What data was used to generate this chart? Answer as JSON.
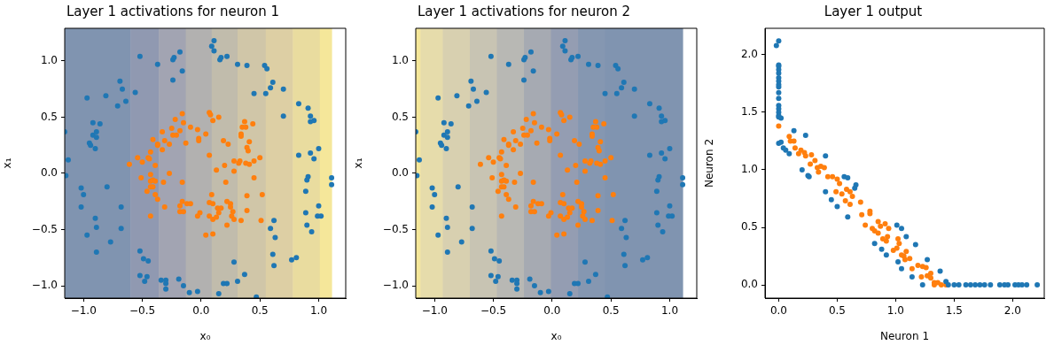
{
  "chart_data": [
    {
      "type": "scatter",
      "title": "Layer 1 activations for neuron 1",
      "xlabel": "x₀",
      "ylabel": "x₁",
      "marker": "circle",
      "bands": [
        {
          "axis": "x",
          "from": -1.16,
          "to": -0.6,
          "color": "#8094b0"
        },
        {
          "axis": "x",
          "from": -0.6,
          "to": -0.36,
          "color": "#9099b1"
        },
        {
          "axis": "x",
          "from": -0.36,
          "to": -0.13,
          "color": "#a2a4b2"
        },
        {
          "axis": "x",
          "from": -0.13,
          "to": 0.09,
          "color": "#b2b1b0"
        },
        {
          "axis": "x",
          "from": 0.09,
          "to": 0.31,
          "color": "#c1bcac"
        },
        {
          "axis": "x",
          "from": 0.31,
          "to": 0.55,
          "color": "#d0c6a8"
        },
        {
          "axis": "x",
          "from": 0.55,
          "to": 0.78,
          "color": "#ddcfa4"
        },
        {
          "axis": "x",
          "from": 0.78,
          "to": 1.01,
          "color": "#e9dc9f"
        },
        {
          "axis": "x",
          "from": 1.01,
          "to": 1.11,
          "color": "#f5e79a"
        }
      ],
      "xlim": [
        -1.16,
        1.23
      ],
      "ylim": [
        -1.11,
        1.29
      ],
      "xticks": [
        {
          "value": -1,
          "label": "−1.0"
        },
        {
          "value": -0.5,
          "label": "−0.5"
        },
        {
          "value": 0,
          "label": "0.0"
        },
        {
          "value": 0.5,
          "label": "0.5"
        },
        {
          "value": 1,
          "label": "1.0"
        }
      ],
      "yticks": [
        {
          "value": -1,
          "label": "−1.0"
        },
        {
          "value": -0.5,
          "label": "−0.5"
        },
        {
          "value": 0,
          "label": "0.0"
        },
        {
          "value": 0.5,
          "label": "0.5"
        },
        {
          "value": 1,
          "label": "1.0"
        }
      ],
      "series": [
        {
          "color": "#1f77b4",
          "x": [
            -1.16,
            -1.13,
            -1.15,
            -0.97,
            -0.92,
            -0.86,
            -0.89,
            -0.92,
            -0.89,
            -0.95,
            -0.94,
            -0.9,
            -0.81,
            -0.71,
            -0.69,
            -0.67,
            -0.64,
            -0.56,
            -0.52,
            -0.37,
            -0.24,
            -0.23,
            -0.18,
            -0.16,
            -0.24,
            0.11,
            0.09,
            0.11,
            0.16,
            0.17,
            0.22,
            0.31,
            0.39,
            0.45,
            0.54,
            0.56,
            0.55,
            0.59,
            0.61,
            0.7,
            0.7,
            0.83,
            0.91,
            0.93,
            0.93,
            0.96,
            0.83,
            0.93,
            1.0,
            0.96,
            0.91,
            0.9,
            0.89,
            1.11,
            1.11,
            1.0,
            0.99,
            1.02,
            0.89,
            0.9,
            0.94,
            0.62,
            0.59,
            0.63,
            0.61,
            0.62,
            0.77,
            0.81,
            0.28,
            0.37,
            0.31,
            0.19,
            0.22,
            -0.15,
            -0.19,
            -0.3,
            -0.34,
            -0.3,
            -0.46,
            -0.52,
            -0.48,
            -0.52,
            -0.49,
            -0.45,
            -0.68,
            -0.68,
            -0.8,
            -0.77,
            -0.9,
            -0.89,
            -0.89,
            -0.97,
            -1.02,
            -1.0,
            -1.02,
            -0.3,
            -0.1,
            -0.03,
            0.15,
            0.47
          ],
          "values": [
            0.37,
            0.12,
            -0.02,
            0.67,
            0.45,
            0.44,
            0.37,
            0.34,
            0.32,
            0.27,
            0.25,
            0.22,
            0.69,
            0.6,
            0.82,
            0.75,
            0.64,
            0.72,
            1.04,
            0.97,
            1.01,
            1.03,
            1.08,
            0.91,
            0.83,
            1.18,
            1.13,
            1.09,
            1.01,
            1.03,
            1.04,
            0.97,
            0.96,
            0.71,
            0.96,
            0.93,
            0.71,
            0.76,
            0.81,
            0.75,
            0.51,
            0.62,
            0.58,
            0.51,
            0.46,
            0.47,
            0.16,
            0.18,
            0.22,
            0.13,
            -0.03,
            -0.06,
            -0.16,
            -0.04,
            -0.1,
            -0.29,
            -0.38,
            -0.38,
            -0.35,
            -0.46,
            -0.52,
            -0.42,
            -0.49,
            -0.57,
            -0.72,
            -0.82,
            -0.77,
            -0.75,
            -0.79,
            -0.9,
            -0.96,
            -0.98,
            -0.98,
            -1.0,
            -0.94,
            -0.95,
            -0.95,
            -0.98,
            -0.92,
            -0.91,
            -0.96,
            -0.69,
            -0.76,
            -0.78,
            -0.3,
            -0.49,
            -0.12,
            -0.61,
            -0.4,
            -0.48,
            -0.7,
            -0.55,
            -0.13,
            -0.19,
            -0.3,
            -1.03,
            -1.06,
            -1.05,
            -1.07,
            -1.1
          ]
        },
        {
          "color": "#ff7f0e",
          "x": [
            -0.61,
            -0.54,
            -0.5,
            -0.51,
            -0.46,
            -0.43,
            -0.43,
            -0.45,
            -0.44,
            -0.39,
            -0.43,
            -0.43,
            -0.41,
            -0.39,
            -0.41,
            -0.39,
            -0.37,
            -0.43,
            -0.31,
            -0.32,
            -0.27,
            -0.33,
            -0.31,
            -0.37,
            -0.37,
            -0.33,
            -0.41,
            -0.27,
            -0.25,
            -0.24,
            -0.21,
            -0.22,
            -0.18,
            -0.15,
            -0.16,
            -0.13,
            -0.09,
            -0.16,
            -0.18,
            -0.16,
            -0.18,
            -0.15,
            -0.12,
            -0.09,
            -0.03,
            -0.01,
            0.04,
            0.1,
            0.07,
            0.09,
            0.1,
            0.07,
            0.1,
            0.13,
            0.14,
            0.15,
            0.17,
            0.13,
            0.07,
            -0.03,
            -0.02,
            -0.02,
            0.04,
            0.07,
            0.08,
            0.1,
            0.15,
            0.19,
            0.23,
            0.2,
            0.21,
            0.22,
            0.25,
            0.25,
            0.27,
            0.26,
            0.28,
            0.34,
            0.22,
            0.28,
            0.28,
            0.32,
            0.33,
            0.38,
            0.41,
            0.45,
            0.5,
            0.45,
            0.39,
            0.52,
            0.39,
            0.51,
            0.37,
            0.35,
            0.38,
            0.44,
            0.34,
            0.34,
            0.41,
            0.39,
            0.4
          ],
          "values": [
            0.08,
            0.14,
            0.1,
            -0.04,
            -0.16,
            -0.01,
            0.19,
            0.14,
            0.13,
            0.07,
            -0.07,
            -0.12,
            -0.06,
            -0.07,
            -0.12,
            -0.19,
            -0.23,
            -0.38,
            -0.3,
            -0.08,
            0.0,
            0.21,
            0.29,
            0.25,
            0.26,
            0.37,
            0.3,
            0.26,
            0.4,
            0.34,
            0.34,
            0.48,
            0.38,
            0.45,
            0.53,
            0.27,
            0.41,
            -0.08,
            -0.29,
            -0.25,
            -0.34,
            -0.34,
            -0.27,
            -0.27,
            -0.38,
            -0.35,
            -0.55,
            -0.54,
            -0.26,
            -0.19,
            -0.27,
            -0.38,
            -0.41,
            -0.39,
            -0.31,
            -0.35,
            -0.31,
            0.03,
            0.16,
            0.39,
            0.31,
            0.29,
            0.35,
            0.54,
            0.52,
            0.47,
            0.5,
            0.29,
            0.26,
            0.07,
            -0.08,
            -0.25,
            -0.27,
            -0.3,
            -0.34,
            -0.38,
            -0.41,
            -0.42,
            -0.46,
            0.11,
            0.02,
            0.09,
            0.11,
            0.09,
            0.08,
            0.11,
            0.14,
            -0.04,
            -0.2,
            -0.19,
            -0.33,
            -0.42,
            0.46,
            0.41,
            0.41,
            0.44,
            0.35,
            0.33,
            0.28,
            0.23,
            0.2
          ]
        }
      ]
    },
    {
      "type": "scatter",
      "title": "Layer 1 activations for neuron 2",
      "xlabel": "x₀",
      "ylabel": "x₁",
      "marker": "circle",
      "bands": [
        {
          "axis": "x",
          "from": -1.16,
          "to": -1.12,
          "color": "#f5e79a"
        },
        {
          "axis": "x",
          "from": -1.12,
          "to": -0.93,
          "color": "#e6dcab"
        },
        {
          "axis": "x",
          "from": -0.93,
          "to": -0.7,
          "color": "#d8d0b0"
        },
        {
          "axis": "x",
          "from": -0.7,
          "to": -0.47,
          "color": "#c8c4b3"
        },
        {
          "axis": "x",
          "from": -0.47,
          "to": -0.24,
          "color": "#b8b8b4"
        },
        {
          "axis": "x",
          "from": -0.24,
          "to": -0.01,
          "color": "#a6aab2"
        },
        {
          "axis": "x",
          "from": -0.01,
          "to": 0.22,
          "color": "#949db2"
        },
        {
          "axis": "x",
          "from": 0.22,
          "to": 0.45,
          "color": "#8597b1"
        },
        {
          "axis": "x",
          "from": 0.45,
          "to": 1.11,
          "color": "#8094b0"
        }
      ],
      "xlim": [
        -1.16,
        1.23
      ],
      "ylim": [
        -1.11,
        1.29
      ],
      "xticks": [
        {
          "value": -1,
          "label": "−1.0"
        },
        {
          "value": -0.5,
          "label": "−0.5"
        },
        {
          "value": 0,
          "label": "0.0"
        },
        {
          "value": 0.5,
          "label": "0.5"
        },
        {
          "value": 1,
          "label": "1.0"
        }
      ],
      "yticks": [
        {
          "value": -1,
          "label": "−1.0"
        },
        {
          "value": -0.5,
          "label": "−0.5"
        },
        {
          "value": 0,
          "label": "0.0"
        },
        {
          "value": 0.5,
          "label": "0.5"
        },
        {
          "value": 1,
          "label": "1.0"
        }
      ],
      "series": [
        {
          "color": "#1f77b4",
          "x": [
            -1.16,
            -1.13,
            -1.15,
            -0.97,
            -0.92,
            -0.86,
            -0.89,
            -0.92,
            -0.89,
            -0.95,
            -0.94,
            -0.9,
            -0.81,
            -0.71,
            -0.69,
            -0.67,
            -0.64,
            -0.56,
            -0.52,
            -0.37,
            -0.24,
            -0.23,
            -0.18,
            -0.16,
            -0.24,
            0.11,
            0.09,
            0.11,
            0.16,
            0.17,
            0.22,
            0.31,
            0.39,
            0.45,
            0.54,
            0.56,
            0.55,
            0.59,
            0.61,
            0.7,
            0.7,
            0.83,
            0.91,
            0.93,
            0.93,
            0.96,
            0.83,
            0.93,
            1.0,
            0.96,
            0.91,
            0.9,
            0.89,
            1.11,
            1.11,
            1.0,
            0.99,
            1.02,
            0.89,
            0.9,
            0.94,
            0.62,
            0.59,
            0.63,
            0.61,
            0.62,
            0.77,
            0.81,
            0.28,
            0.37,
            0.31,
            0.19,
            0.22,
            -0.15,
            -0.19,
            -0.3,
            -0.34,
            -0.3,
            -0.46,
            -0.52,
            -0.48,
            -0.52,
            -0.49,
            -0.45,
            -0.68,
            -0.68,
            -0.8,
            -0.77,
            -0.9,
            -0.89,
            -0.89,
            -0.97,
            -1.02,
            -1.0,
            -1.02,
            -0.3,
            -0.1,
            -0.03,
            0.15,
            0.47
          ],
          "values": [
            0.37,
            0.12,
            -0.02,
            0.67,
            0.45,
            0.44,
            0.37,
            0.34,
            0.32,
            0.27,
            0.25,
            0.22,
            0.69,
            0.6,
            0.82,
            0.75,
            0.64,
            0.72,
            1.04,
            0.97,
            1.01,
            1.03,
            1.08,
            0.91,
            0.83,
            1.18,
            1.13,
            1.09,
            1.01,
            1.03,
            1.04,
            0.97,
            0.96,
            0.71,
            0.96,
            0.93,
            0.71,
            0.76,
            0.81,
            0.75,
            0.51,
            0.62,
            0.58,
            0.51,
            0.46,
            0.47,
            0.16,
            0.18,
            0.22,
            0.13,
            -0.03,
            -0.06,
            -0.16,
            -0.04,
            -0.1,
            -0.29,
            -0.38,
            -0.38,
            -0.35,
            -0.46,
            -0.52,
            -0.42,
            -0.49,
            -0.57,
            -0.72,
            -0.82,
            -0.77,
            -0.75,
            -0.79,
            -0.9,
            -0.96,
            -0.98,
            -0.98,
            -1.0,
            -0.94,
            -0.95,
            -0.95,
            -0.98,
            -0.92,
            -0.91,
            -0.96,
            -0.69,
            -0.76,
            -0.78,
            -0.3,
            -0.49,
            -0.12,
            -0.61,
            -0.4,
            -0.48,
            -0.7,
            -0.55,
            -0.13,
            -0.19,
            -0.3,
            -1.03,
            -1.06,
            -1.05,
            -1.07,
            -1.1
          ]
        },
        {
          "color": "#ff7f0e",
          "x": [
            -0.61,
            -0.54,
            -0.5,
            -0.51,
            -0.46,
            -0.43,
            -0.43,
            -0.45,
            -0.44,
            -0.39,
            -0.43,
            -0.43,
            -0.41,
            -0.39,
            -0.41,
            -0.39,
            -0.37,
            -0.43,
            -0.31,
            -0.32,
            -0.27,
            -0.33,
            -0.31,
            -0.37,
            -0.37,
            -0.33,
            -0.41,
            -0.27,
            -0.25,
            -0.24,
            -0.21,
            -0.22,
            -0.18,
            -0.15,
            -0.16,
            -0.13,
            -0.09,
            -0.16,
            -0.18,
            -0.16,
            -0.18,
            -0.15,
            -0.12,
            -0.09,
            -0.03,
            -0.01,
            0.04,
            0.1,
            0.07,
            0.09,
            0.1,
            0.07,
            0.1,
            0.13,
            0.14,
            0.15,
            0.17,
            0.13,
            0.07,
            -0.03,
            -0.02,
            -0.02,
            0.04,
            0.07,
            0.08,
            0.1,
            0.15,
            0.19,
            0.23,
            0.2,
            0.21,
            0.22,
            0.25,
            0.25,
            0.27,
            0.26,
            0.28,
            0.34,
            0.22,
            0.28,
            0.28,
            0.32,
            0.33,
            0.38,
            0.41,
            0.45,
            0.5,
            0.45,
            0.39,
            0.52,
            0.39,
            0.51,
            0.37,
            0.35,
            0.38,
            0.44,
            0.34,
            0.34,
            0.41,
            0.39,
            0.4
          ],
          "values": [
            0.08,
            0.14,
            0.1,
            -0.04,
            -0.16,
            -0.01,
            0.19,
            0.14,
            0.13,
            0.07,
            -0.07,
            -0.12,
            -0.06,
            -0.07,
            -0.12,
            -0.19,
            -0.23,
            -0.38,
            -0.3,
            -0.08,
            0.0,
            0.21,
            0.29,
            0.25,
            0.26,
            0.37,
            0.3,
            0.26,
            0.4,
            0.34,
            0.34,
            0.48,
            0.38,
            0.45,
            0.53,
            0.27,
            0.41,
            -0.08,
            -0.29,
            -0.25,
            -0.34,
            -0.34,
            -0.27,
            -0.27,
            -0.38,
            -0.35,
            -0.55,
            -0.54,
            -0.26,
            -0.19,
            -0.27,
            -0.38,
            -0.41,
            -0.39,
            -0.31,
            -0.35,
            -0.31,
            0.03,
            0.16,
            0.39,
            0.31,
            0.29,
            0.35,
            0.54,
            0.52,
            0.47,
            0.5,
            0.29,
            0.26,
            0.07,
            -0.08,
            -0.25,
            -0.27,
            -0.3,
            -0.34,
            -0.38,
            -0.41,
            -0.42,
            -0.46,
            0.11,
            0.02,
            0.09,
            0.11,
            0.09,
            0.08,
            0.11,
            0.14,
            -0.04,
            -0.2,
            -0.19,
            -0.33,
            -0.42,
            0.46,
            0.41,
            0.41,
            0.44,
            0.35,
            0.33,
            0.28,
            0.23,
            0.2
          ]
        }
      ]
    },
    {
      "type": "scatter",
      "title": "Layer 1 output",
      "xlabel": "Neuron 1",
      "ylabel": "Neuron 2",
      "marker": "circle",
      "xlim": [
        -0.117,
        2.27
      ],
      "ylim": [
        -0.115,
        2.23
      ],
      "xticks": [
        {
          "value": 0,
          "label": "0.0"
        },
        {
          "value": 0.5,
          "label": "0.5"
        },
        {
          "value": 1,
          "label": "1.0"
        },
        {
          "value": 1.5,
          "label": "1.5"
        },
        {
          "value": 2,
          "label": "2.0"
        }
      ],
      "yticks": [
        {
          "value": 0,
          "label": "0.0"
        },
        {
          "value": 0.5,
          "label": "0.5"
        },
        {
          "value": 1,
          "label": "1.0"
        },
        {
          "value": 1.5,
          "label": "1.5"
        },
        {
          "value": 2,
          "label": "2.0"
        }
      ],
      "series": [
        {
          "color": "#1f77b4",
          "x": [
            0,
            -0.02,
            0,
            0,
            0,
            0,
            0,
            0,
            0,
            0,
            0,
            0,
            0,
            0,
            0,
            0,
            0,
            0.02,
            0,
            0.02,
            0.04,
            0.06,
            0.09,
            0.13,
            0.23,
            0.2,
            0.25,
            0.26,
            0.4,
            0.4,
            0.45,
            0.5,
            0.56,
            0.59,
            0.66,
            0.65,
            0.59,
            0.82,
            0.88,
            0.92,
            1.01,
            1.05,
            1.09,
            1.17,
            1.02,
            1.05,
            1.14,
            1.27,
            1.38,
            1.23,
            1.43,
            1.45,
            1.5,
            1.54,
            1.6,
            1.64,
            1.68,
            1.72,
            1.76,
            1.81,
            1.89,
            1.93,
            1.96,
            2.02,
            2.05,
            2.08,
            2.12,
            2.21
          ],
          "values": [
            2.12,
            2.08,
            1.91,
            1.9,
            1.87,
            1.84,
            1.8,
            1.77,
            1.74,
            1.72,
            1.67,
            1.62,
            1.56,
            1.53,
            1.5,
            1.47,
            1.46,
            1.45,
            1.23,
            1.24,
            1.19,
            1.17,
            1.14,
            1.34,
            1.3,
            1.0,
            0.95,
            0.94,
            1.12,
            0.81,
            0.74,
            0.68,
            0.94,
            0.93,
            0.87,
            0.84,
            0.59,
            0.36,
            0.31,
            0.26,
            0.52,
            0.49,
            0.42,
            0.35,
            0.2,
            0.14,
            0.07,
            0.22,
            0.12,
            0,
            0.03,
            0,
            0,
            0,
            0,
            0,
            0,
            0,
            0,
            0,
            0,
            0,
            0,
            0,
            0,
            0,
            0,
            0
          ]
        },
        {
          "color": "#ff7f0e",
          "x": [
            0,
            0.09,
            0.1,
            0.13,
            0.14,
            0.17,
            0.19,
            0.22,
            0.23,
            0.28,
            0.27,
            0.31,
            0.33,
            0.36,
            0.39,
            0.34,
            0.42,
            0.46,
            0.5,
            0.52,
            0.49,
            0.54,
            0.58,
            0.61,
            0.63,
            0.57,
            0.61,
            0.7,
            0.78,
            0.78,
            0.71,
            0.74,
            0.85,
            0.87,
            0.8,
            0.82,
            0.85,
            0.89,
            0.92,
            0.91,
            0.94,
            0.93,
            0.98,
            1.01,
            1.03,
            1.02,
            1.05,
            1.07,
            1.09,
            1.08,
            1.12,
            1.14,
            1.19,
            1.23,
            1.26,
            1.22,
            1.27,
            1.3,
            1.3,
            1.33,
            1.33,
            1.36,
            1.39,
            1.43
          ],
          "values": [
            1.38,
            1.29,
            1.25,
            1.25,
            1.19,
            1.14,
            1.17,
            1.15,
            1.12,
            1.13,
            1.05,
            1.08,
            1.02,
            1.03,
            1.02,
            0.98,
            0.94,
            0.94,
            0.92,
            0.88,
            0.81,
            0.79,
            0.83,
            0.81,
            0.77,
            0.73,
            0.7,
            0.72,
            0.64,
            0.62,
            0.61,
            0.52,
            0.55,
            0.51,
            0.49,
            0.47,
            0.45,
            0.4,
            0.38,
            0.53,
            0.49,
            0.42,
            0.3,
            0.32,
            0.36,
            0.4,
            0.26,
            0.25,
            0.29,
            0.22,
            0.23,
            0.14,
            0.17,
            0.16,
            0.15,
            0.07,
            0.08,
            0.1,
            0.06,
            0.02,
            0,
            0.02,
            0,
            0
          ]
        }
      ]
    }
  ]
}
